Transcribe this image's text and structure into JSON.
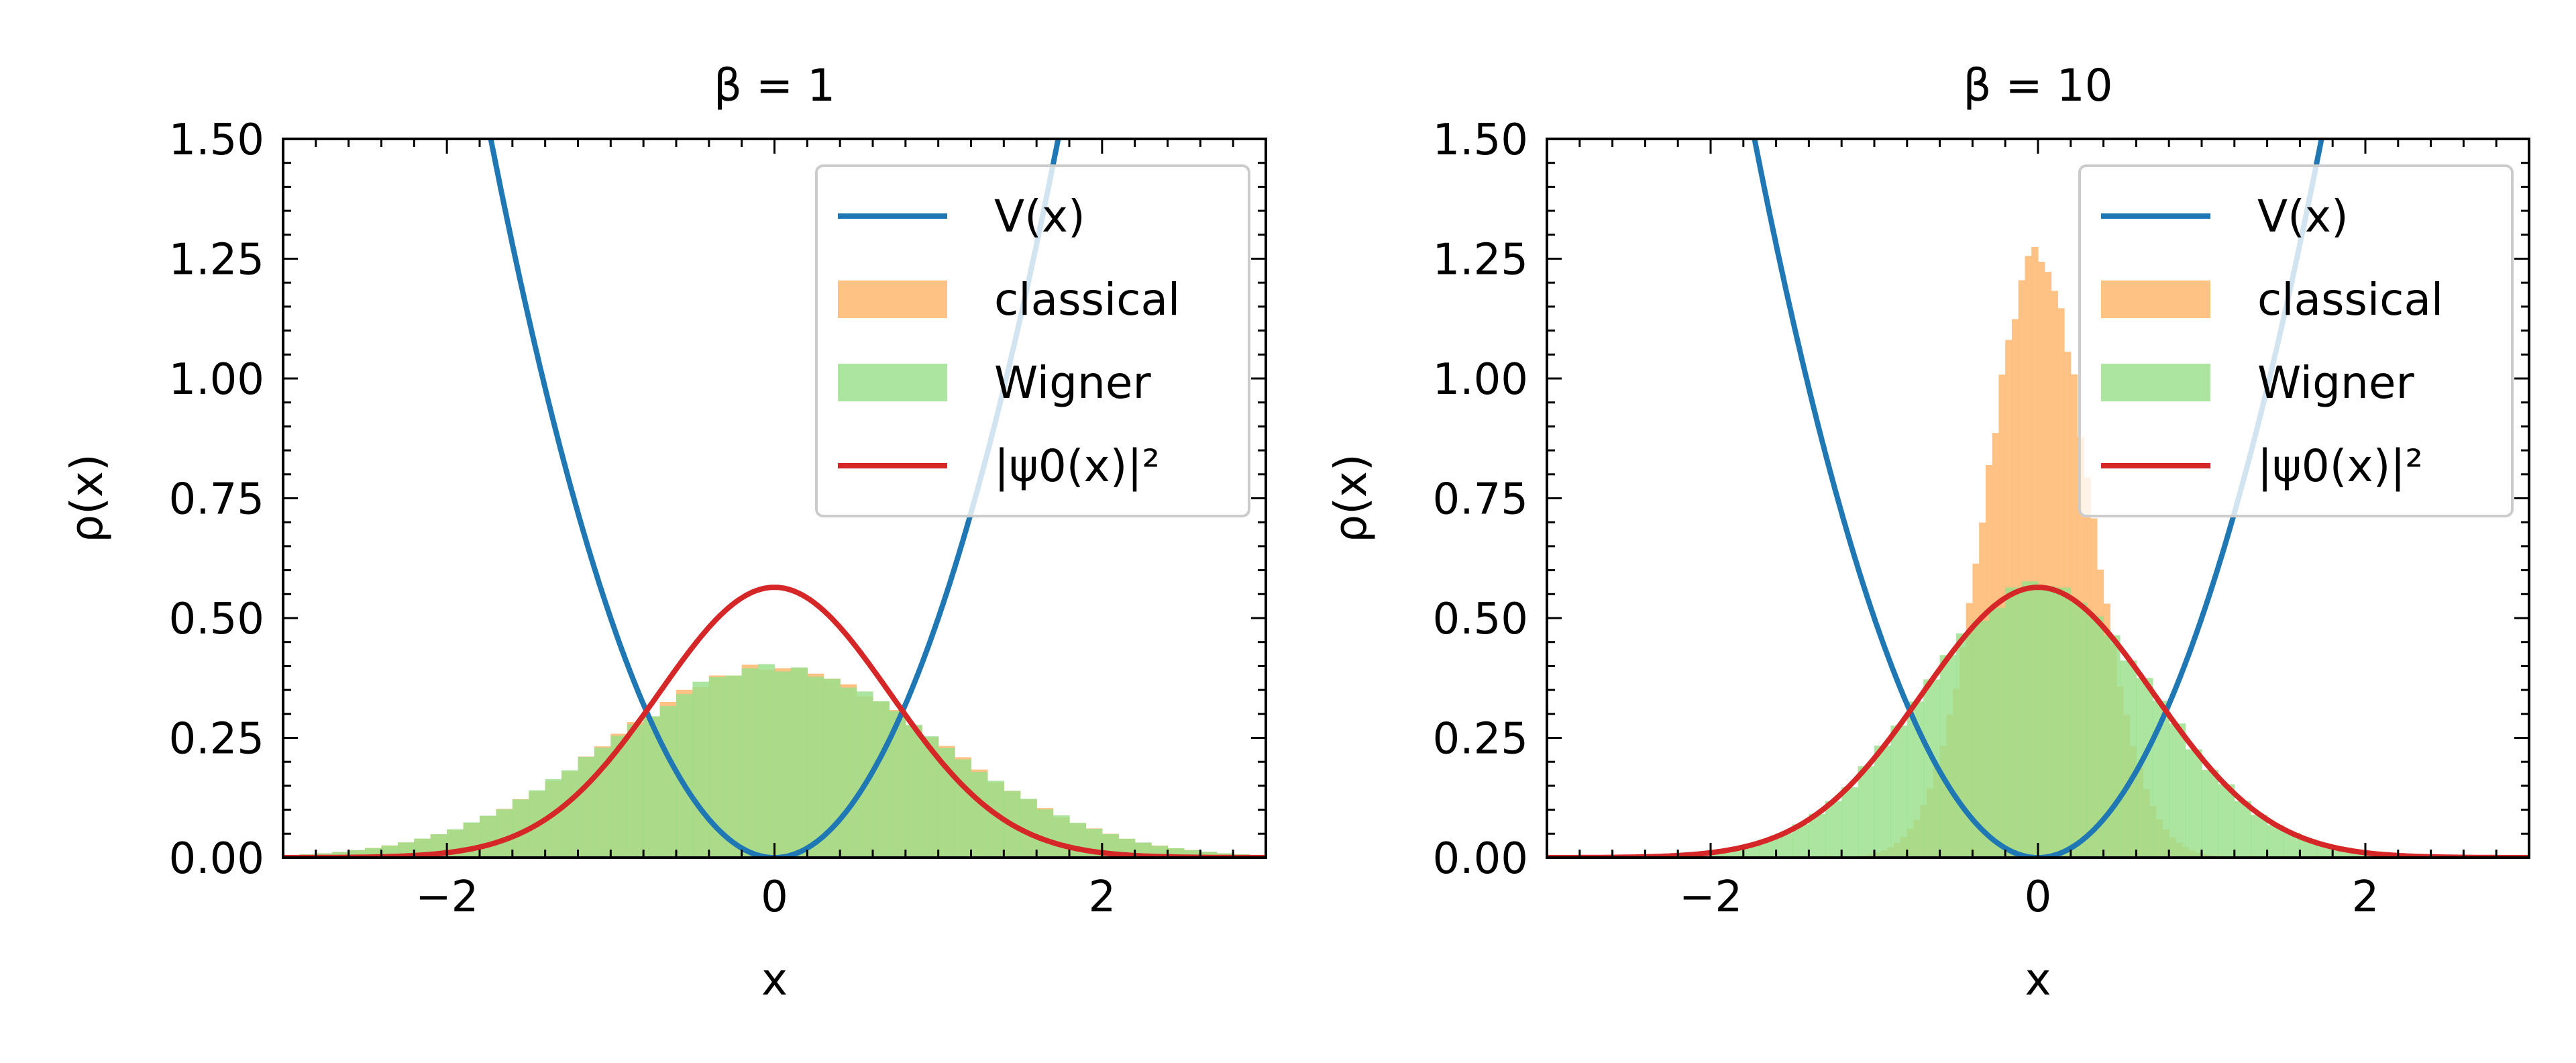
{
  "chart_data": [
    {
      "type": "line",
      "title": "β = 1",
      "xlabel": "x",
      "ylabel": "ρ(x)",
      "xlim": [
        -3,
        3
      ],
      "ylim": [
        0,
        1.5
      ],
      "xticks": [
        "−2",
        "0",
        "2"
      ],
      "xtick_values": [
        -2,
        0,
        2
      ],
      "yticks": [
        "0.00",
        "0.25",
        "0.50",
        "0.75",
        "1.00",
        "1.25",
        "1.50"
      ],
      "ytick_values": [
        0,
        0.25,
        0.5,
        0.75,
        1.0,
        1.25,
        1.5
      ],
      "legend_position": "top-right",
      "series": [
        {
          "name": "V(x)",
          "kind": "line",
          "color": "#1f77b4",
          "formula": "0.5*x^2"
        },
        {
          "name": "classical",
          "kind": "histogram",
          "color": "#ffbb78",
          "alpha": 0.9,
          "gaussian_sigma": 1.0
        },
        {
          "name": "Wigner",
          "kind": "histogram",
          "color": "#98df8a",
          "alpha": 0.82,
          "gaussian_sigma": 1.0
        },
        {
          "name": "|ψ0(x)|²",
          "kind": "line",
          "color": "#d62728",
          "formula": "exp(-x^2)/sqrt(pi)"
        }
      ]
    },
    {
      "type": "line",
      "title": "β = 10",
      "xlabel": "x",
      "ylabel": "ρ(x)",
      "xlim": [
        -3,
        3
      ],
      "ylim": [
        0,
        1.5
      ],
      "xticks": [
        "−2",
        "0",
        "2"
      ],
      "xtick_values": [
        -2,
        0,
        2
      ],
      "yticks": [
        "0.00",
        "0.25",
        "0.50",
        "0.75",
        "1.00",
        "1.25",
        "1.50"
      ],
      "ytick_values": [
        0,
        0.25,
        0.5,
        0.75,
        1.0,
        1.25,
        1.5
      ],
      "legend_position": "top-right",
      "series": [
        {
          "name": "V(x)",
          "kind": "line",
          "color": "#1f77b4",
          "formula": "0.5*x^2"
        },
        {
          "name": "classical",
          "kind": "histogram",
          "color": "#ffbb78",
          "alpha": 0.9,
          "gaussian_sigma": 0.316
        },
        {
          "name": "Wigner",
          "kind": "histogram",
          "color": "#98df8a",
          "alpha": 0.82,
          "gaussian_sigma": 0.707
        },
        {
          "name": "|ψ0(x)|²",
          "kind": "line",
          "color": "#d62728",
          "formula": "exp(-x^2)/sqrt(pi)"
        }
      ]
    }
  ]
}
